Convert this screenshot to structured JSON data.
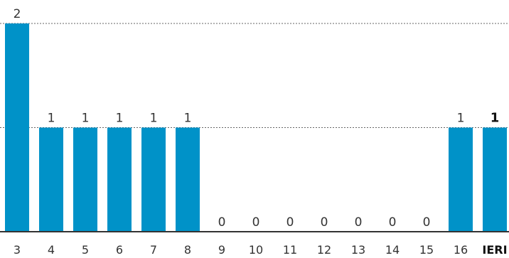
{
  "chart_data": {
    "type": "bar",
    "title": "",
    "xlabel": "",
    "ylabel": "",
    "categories": [
      "3",
      "4",
      "5",
      "6",
      "7",
      "8",
      "9",
      "10",
      "11",
      "12",
      "13",
      "14",
      "15",
      "16",
      "IERI"
    ],
    "values": [
      2,
      1,
      1,
      1,
      1,
      1,
      0,
      0,
      0,
      0,
      0,
      0,
      0,
      1,
      1
    ],
    "highlight_category": "IERI",
    "ylim": [
      0,
      2
    ],
    "grid": true,
    "grid_style": "dotted",
    "legend": "none",
    "colors": {
      "bar": "#0092c8",
      "grid": "#666666",
      "axis": "#333333",
      "text": "#333333"
    }
  }
}
